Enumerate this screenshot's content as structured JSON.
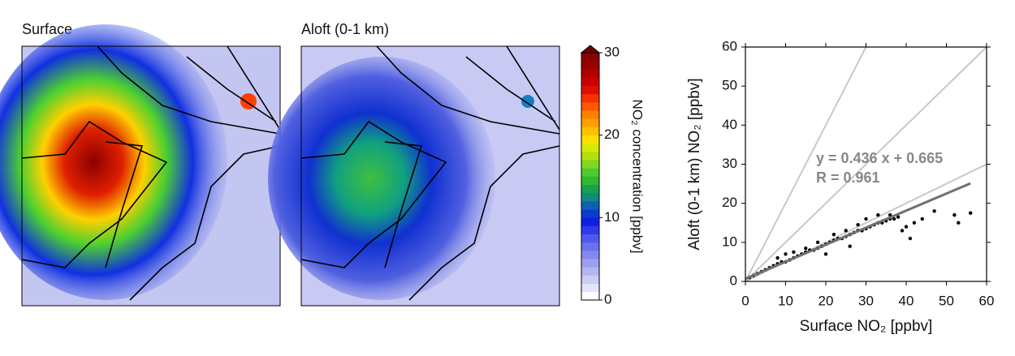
{
  "chart_data": [
    {
      "type": "map",
      "title": "Surface"
    },
    {
      "type": "map",
      "title": "Aloft (0-1 km)"
    },
    {
      "type": "colorbar",
      "label": "NO₂ concentration [ppbv]",
      "ylim": [
        0,
        30
      ],
      "yticks": [
        0,
        10,
        20,
        30
      ],
      "extend": "max"
    },
    {
      "type": "scatter",
      "xlabel": "Surface NO₂ [ppbv]",
      "ylabel": "Aloft (0-1 km) NO₂ [ppbv]",
      "xlim": [
        0,
        60
      ],
      "ylim": [
        0,
        60
      ],
      "xticks": [
        0,
        10,
        20,
        30,
        40,
        50,
        60
      ],
      "yticks": [
        0,
        10,
        20,
        30,
        40,
        50,
        60
      ],
      "annotations": [
        "y = 0.436 x + 0.665",
        "R = 0.961"
      ],
      "reference_lines": {
        "color": "#c8c8c8",
        "lines": [
          {
            "x": [
              0,
              30
            ],
            "y": [
              0,
              60
            ]
          },
          {
            "x": [
              0,
              60
            ],
            "y": [
              0,
              60
            ]
          },
          {
            "x": [
              0,
              60
            ],
            "y": [
              0,
              30
            ]
          }
        ]
      },
      "fit_line": {
        "color": "#707070",
        "x": [
          0,
          56
        ],
        "y": [
          0.665,
          25.1
        ]
      },
      "series": [
        {
          "color": "#000000",
          "x": [
            1,
            2,
            3,
            4,
            5,
            6,
            7,
            8,
            9,
            10,
            11,
            12,
            13,
            14,
            15,
            16,
            17,
            18,
            19,
            20,
            21,
            22,
            23,
            24,
            25,
            26,
            27,
            28,
            29,
            30,
            31,
            32,
            33,
            34,
            35,
            36,
            37,
            38,
            39,
            40,
            42,
            44,
            41,
            47,
            52,
            53,
            56,
            8,
            10,
            12,
            15,
            18,
            22,
            25,
            28,
            30,
            33,
            36,
            20,
            26
          ],
          "values": [
            1,
            1.5,
            2,
            2.5,
            3,
            3.5,
            4,
            4.5,
            5,
            5,
            5.5,
            6,
            6.5,
            7,
            7.5,
            8,
            8,
            8.5,
            9,
            9.5,
            10,
            10.5,
            11,
            11,
            11.5,
            12,
            12.5,
            13,
            13,
            13.5,
            14,
            14.5,
            15,
            15,
            15.5,
            16,
            16,
            16.5,
            13,
            14,
            15,
            16,
            11,
            18,
            17,
            15,
            17.5,
            6,
            7,
            7.5,
            8.5,
            10,
            12,
            13,
            14.5,
            16,
            17,
            17,
            7,
            9
          ]
        }
      ]
    }
  ]
}
